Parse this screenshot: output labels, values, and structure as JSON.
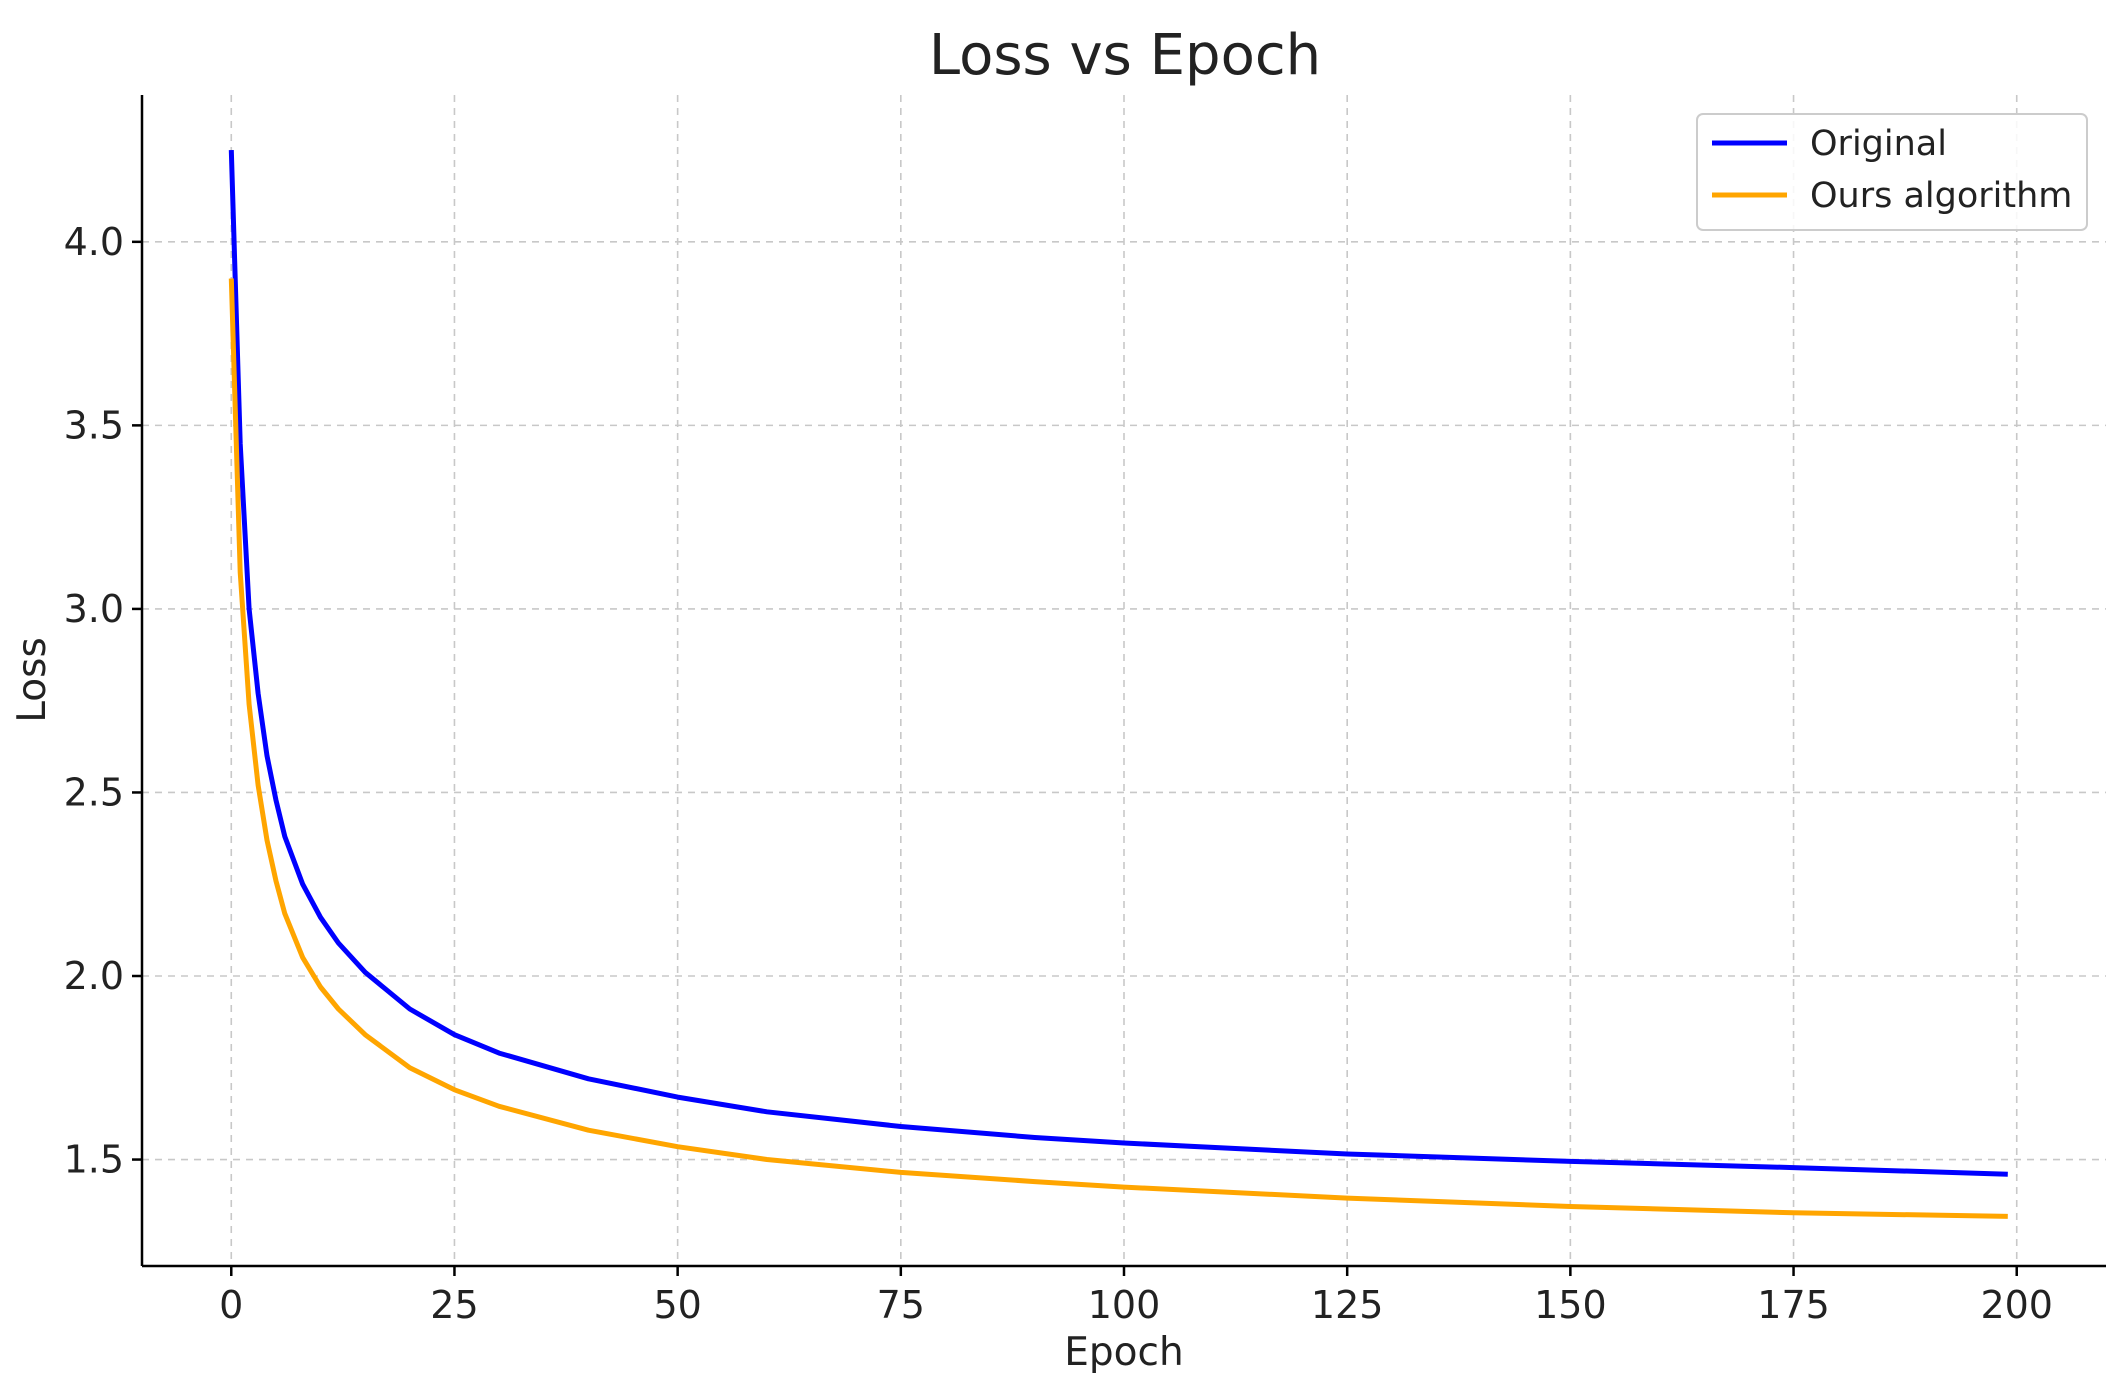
{
  "chart_data": {
    "type": "line",
    "title": "Loss vs Epoch",
    "xlabel": "Epoch",
    "ylabel": "Loss",
    "xlim": [
      -10,
      210
    ],
    "ylim": [
      1.21,
      4.4
    ],
    "xticks": [
      0,
      25,
      50,
      75,
      100,
      125,
      150,
      175,
      200
    ],
    "xtick_labels": [
      "0",
      "25",
      "50",
      "75",
      "100",
      "125",
      "150",
      "175",
      "200"
    ],
    "yticks": [
      1.5,
      2.0,
      2.5,
      3.0,
      3.5,
      4.0
    ],
    "ytick_labels": [
      "1.5",
      "2.0",
      "2.5",
      "3.0",
      "3.5",
      "4.0"
    ],
    "grid": true,
    "legend_position": "top-right",
    "series": [
      {
        "name": "Original",
        "color": "#0000ff",
        "x": [
          0,
          1,
          2,
          3,
          4,
          5,
          6,
          8,
          10,
          12,
          15,
          20,
          25,
          30,
          40,
          50,
          60,
          75,
          90,
          100,
          125,
          150,
          175,
          199
        ],
        "y": [
          4.25,
          3.45,
          3.0,
          2.77,
          2.6,
          2.48,
          2.38,
          2.25,
          2.16,
          2.09,
          2.01,
          1.91,
          1.84,
          1.79,
          1.72,
          1.67,
          1.63,
          1.59,
          1.56,
          1.545,
          1.515,
          1.495,
          1.478,
          1.46
        ]
      },
      {
        "name": "Ours algorithm",
        "color": "#ffa500",
        "x": [
          0,
          1,
          2,
          3,
          4,
          5,
          6,
          8,
          10,
          12,
          15,
          20,
          25,
          30,
          40,
          50,
          60,
          75,
          90,
          100,
          125,
          150,
          175,
          199
        ],
        "y": [
          3.9,
          3.1,
          2.74,
          2.52,
          2.37,
          2.26,
          2.17,
          2.05,
          1.97,
          1.91,
          1.84,
          1.75,
          1.69,
          1.645,
          1.58,
          1.535,
          1.5,
          1.465,
          1.44,
          1.425,
          1.395,
          1.372,
          1.355,
          1.345
        ]
      }
    ]
  }
}
